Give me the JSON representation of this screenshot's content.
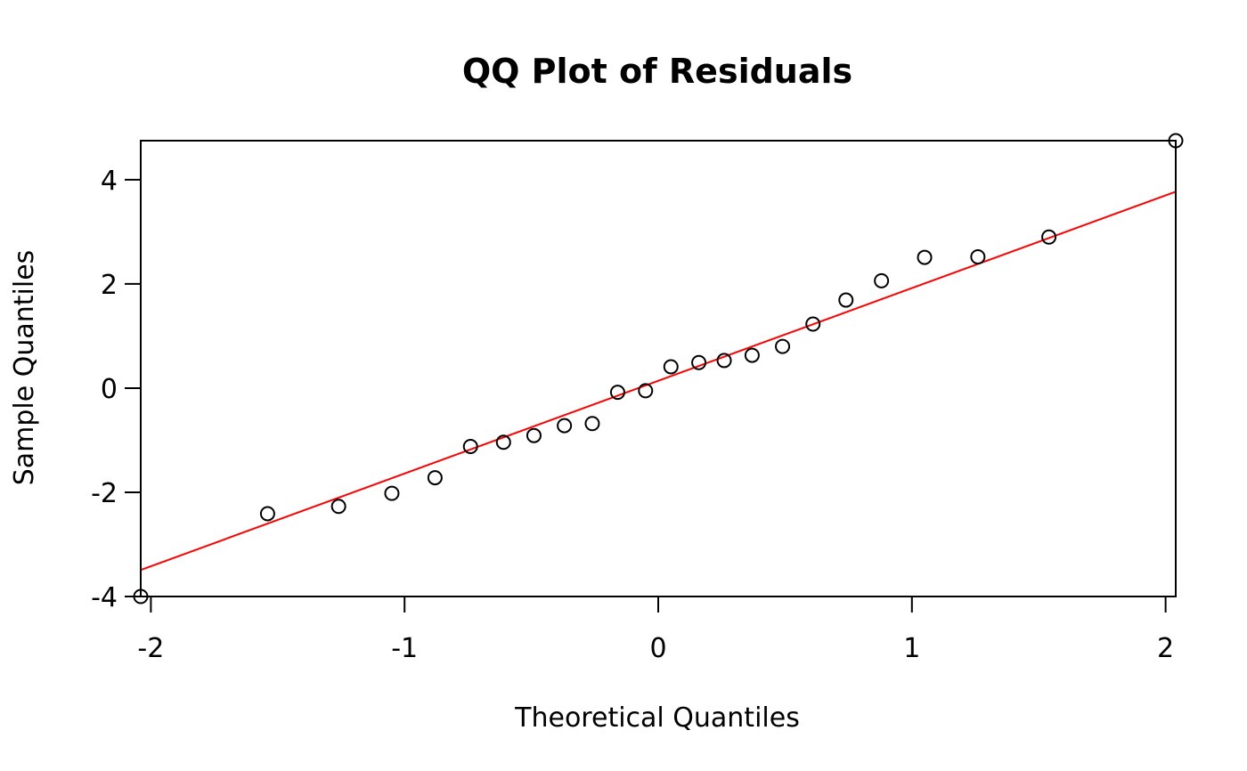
{
  "chart_data": {
    "type": "scatter",
    "title": "QQ Plot of Residuals",
    "xlabel": "Theoretical Quantiles",
    "ylabel": "Sample Quantiles",
    "xlim": [
      -2.04,
      2.04
    ],
    "ylim": [
      -4.0,
      4.75
    ],
    "xticks": [
      -2,
      -1,
      0,
      1,
      2
    ],
    "yticks": [
      -4,
      -2,
      0,
      2,
      4
    ],
    "grid": false,
    "legend": "none",
    "series": [
      {
        "x": [
          -2.04,
          -1.54,
          -1.26,
          -1.05,
          -0.88,
          -0.74,
          -0.61,
          -0.49,
          -0.37,
          -0.26,
          -0.16,
          -0.05,
          0.05,
          0.16,
          0.26,
          0.37,
          0.49,
          0.61,
          0.74,
          0.88,
          1.05,
          1.26,
          1.54,
          2.04
        ],
        "y": [
          -4.0,
          -2.41,
          -2.27,
          -2.02,
          -1.72,
          -1.12,
          -1.04,
          -0.91,
          -0.72,
          -0.68,
          -0.08,
          -0.05,
          0.41,
          0.49,
          0.53,
          0.63,
          0.8,
          1.23,
          1.69,
          2.06,
          2.51,
          2.52,
          2.9,
          4.75
        ]
      }
    ],
    "reference_line": {
      "slope": 1.78,
      "intercept": 0.14
    },
    "colors": {
      "points": "#000000",
      "reference_line": "#ff0000",
      "axes": "#000000"
    }
  }
}
